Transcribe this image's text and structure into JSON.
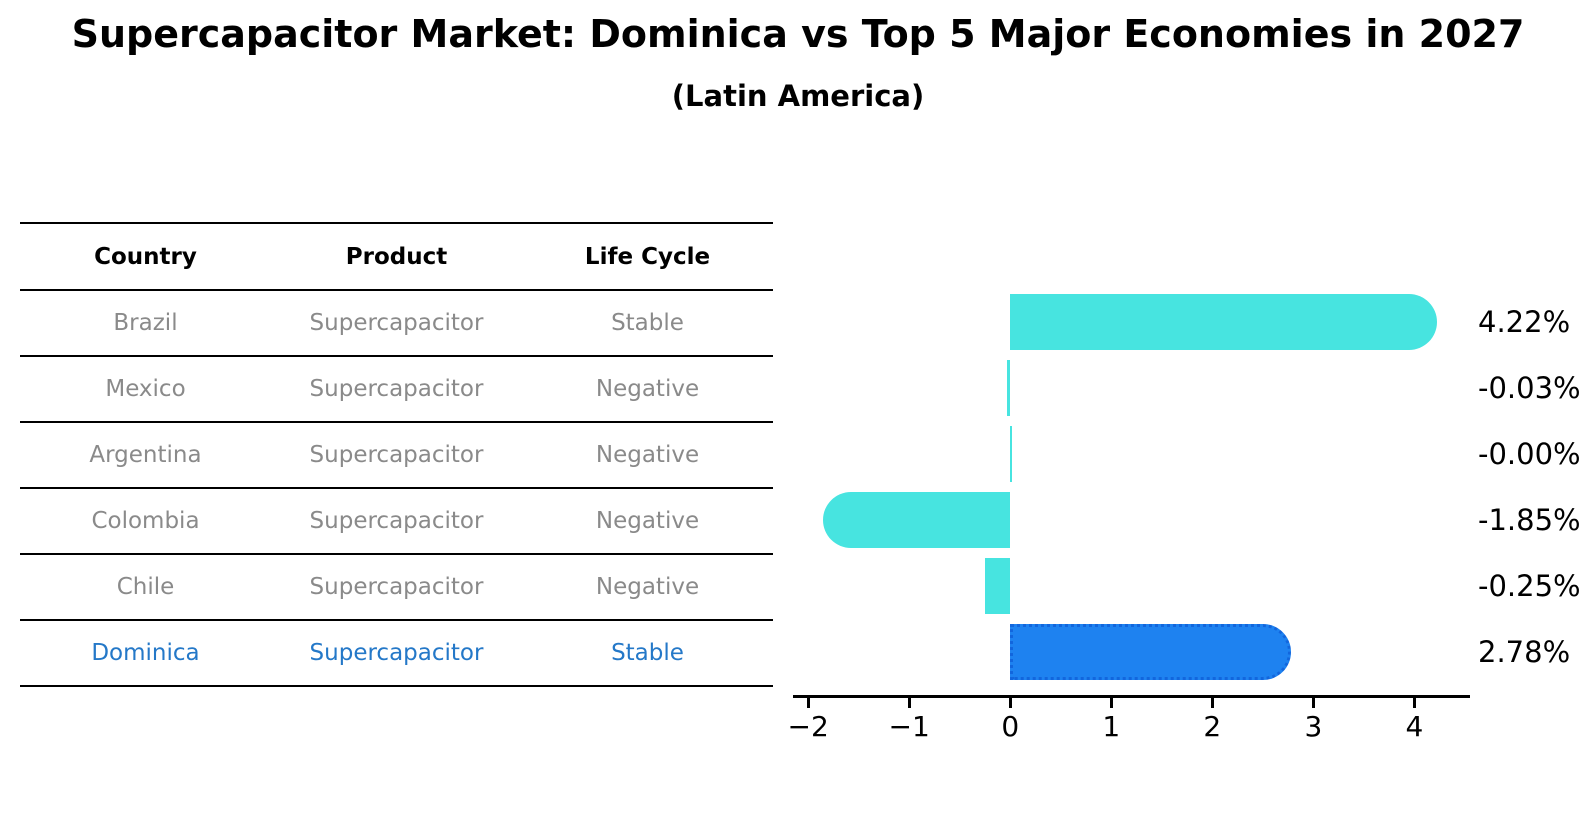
{
  "title": "Supercapacitor Market: Dominica vs Top 5 Major Economies in 2027",
  "subtitle": "(Latin America)",
  "table": {
    "headers": [
      "Country",
      "Product",
      "Life Cycle"
    ],
    "rows": [
      {
        "country": "Brazil",
        "product": "Supercapacitor",
        "life_cycle": "Stable",
        "highlight": false
      },
      {
        "country": "Mexico",
        "product": "Supercapacitor",
        "life_cycle": "Negative",
        "highlight": false
      },
      {
        "country": "Argentina",
        "product": "Supercapacitor",
        "life_cycle": "Negative",
        "highlight": false
      },
      {
        "country": "Colombia",
        "product": "Supercapacitor",
        "life_cycle": "Negative",
        "highlight": false
      },
      {
        "country": "Chile",
        "product": "Supercapacitor",
        "life_cycle": "Negative",
        "highlight": false
      },
      {
        "country": "Dominica",
        "product": "Supercapacitor",
        "life_cycle": "Stable",
        "highlight": true
      }
    ]
  },
  "chart_data": {
    "type": "bar",
    "orientation": "horizontal",
    "categories": [
      "Brazil",
      "Mexico",
      "Argentina",
      "Colombia",
      "Chile",
      "Dominica"
    ],
    "values": [
      4.22,
      -0.03,
      -0.0,
      -1.85,
      -0.25,
      2.78
    ],
    "value_labels": [
      "4.22%",
      "-0.03%",
      "-0.00%",
      "-1.85%",
      "-0.25%",
      "2.78%"
    ],
    "highlight_index": 5,
    "x_tick_values": [
      -2,
      -1,
      0,
      1,
      2,
      3,
      4
    ],
    "x_ticks": [
      "−2",
      "−1",
      "0",
      "1",
      "2",
      "3",
      "4"
    ],
    "xlim": [
      -2.15,
      4.55
    ],
    "grid": false,
    "legend": "none",
    "bar_color": "#47e4e0",
    "highlight_color": "#1e82f0",
    "highlight_text_color": "#2478c8",
    "title": "Supercapacitor Market: Dominica vs Top 5 Major Economies in 2027",
    "subtitle": "(Latin America)",
    "xlabel": "",
    "ylabel": ""
  }
}
